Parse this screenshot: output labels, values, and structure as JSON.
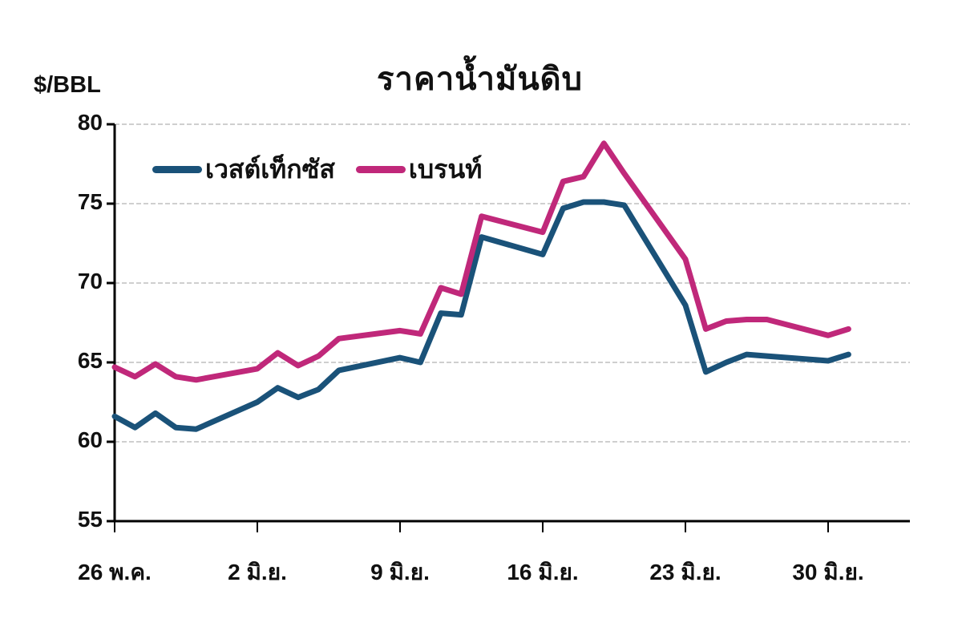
{
  "chart_data": {
    "type": "line",
    "title": "ราคาน้ำมันดิบ",
    "ylabel": "$/BBL",
    "xlabel": "",
    "ylim": [
      55,
      80
    ],
    "yticks": [
      55,
      60,
      65,
      70,
      75,
      80
    ],
    "grid": true,
    "legend_position": "top-left",
    "xtick_labels": [
      "26 พ.ค.",
      "2 มิ.ย.",
      "9 มิ.ย.",
      "16 มิ.ย.",
      "23 มิ.ย.",
      "30 มิ.ย."
    ],
    "x": [
      "26 พ.ค.",
      "27 พ.ค.",
      "28 พ.ค.",
      "29 พ.ค.",
      "30 พ.ค.",
      "2 มิ.ย.",
      "3 มิ.ย.",
      "4 มิ.ย.",
      "5 มิ.ย.",
      "6 มิ.ย.",
      "9 มิ.ย.",
      "10 มิ.ย.",
      "11 มิ.ย.",
      "12 มิ.ย.",
      "13 มิ.ย.",
      "16 มิ.ย.",
      "17 มิ.ย.",
      "18 มิ.ย.",
      "19 มิ.ย.",
      "20 มิ.ย.",
      "23 มิ.ย.",
      "24 มิ.ย.",
      "25 มิ.ย.",
      "26 มิ.ย.",
      "27 มิ.ย.",
      "30 มิ.ย.",
      "1 ก.ค."
    ],
    "series": [
      {
        "name": "เวสต์เท็กซัส",
        "color": "#1a5279",
        "values": [
          61.6,
          60.9,
          61.8,
          60.9,
          60.8,
          62.5,
          63.4,
          62.8,
          63.3,
          64.5,
          65.3,
          65.0,
          68.1,
          68.0,
          72.9,
          71.8,
          74.7,
          75.1,
          75.1,
          74.9,
          68.6,
          64.4,
          65.0,
          65.5,
          65.4,
          65.1,
          65.5
        ]
      },
      {
        "name": "เบรนท์",
        "color": "#c0287a",
        "values": [
          64.7,
          64.1,
          64.9,
          64.1,
          63.9,
          64.6,
          65.6,
          64.8,
          65.4,
          66.5,
          67.0,
          66.8,
          69.7,
          69.3,
          74.2,
          73.2,
          76.4,
          76.7,
          78.8,
          76.9,
          71.5,
          67.1,
          67.6,
          67.7,
          67.7,
          66.7,
          67.1
        ]
      }
    ]
  }
}
